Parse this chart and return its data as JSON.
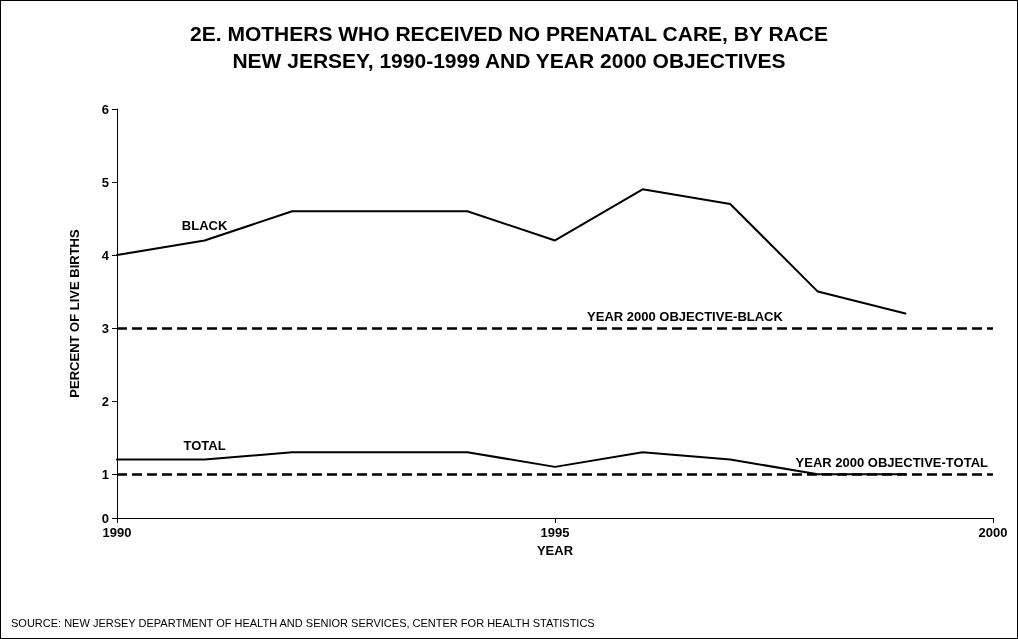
{
  "chart_data": {
    "type": "line",
    "title": "2E. MOTHERS WHO RECEIVED NO PRENATAL CARE, BY RACE\nNEW JERSEY, 1990-1999 AND YEAR 2000 OBJECTIVES",
    "xlabel": "YEAR",
    "ylabel": "PERCENT OF LIVE BIRTHS",
    "annotations": [
      "SOURCE: NEW JERSEY DEPARTMENT OF HEALTH AND SENIOR SERVICES, CENTER FOR HEALTH STATISTICS"
    ],
    "x": [
      1990,
      1991,
      1992,
      1993,
      1994,
      1995,
      1996,
      1997,
      1998,
      1999
    ],
    "series": [
      {
        "name": "BLACK",
        "color": "#000000",
        "values": [
          4.0,
          4.2,
          4.6,
          4.6,
          4.6,
          4.2,
          4.9,
          4.7,
          3.5,
          3.2
        ]
      },
      {
        "name": "TOTAL",
        "color": "#000000",
        "values": [
          1.2,
          1.2,
          1.3,
          1.3,
          1.3,
          1.1,
          1.3,
          1.2,
          1.0,
          1.0
        ]
      }
    ],
    "xlim": [
      1990,
      2000
    ],
    "xticks": [
      1990,
      1995,
      2000
    ],
    "ylim": [
      0.4,
      6
    ],
    "yticks": [
      {
        "value": 0.4,
        "label": "0"
      },
      1,
      2,
      3,
      4,
      5,
      6
    ],
    "ref_lines": [
      {
        "axis": "y",
        "value": 3,
        "label": "YEAR 2000 OBJECTIVE-BLACK",
        "color": "#000000",
        "line_style": "dashed"
      },
      {
        "axis": "y",
        "value": 1,
        "label": "YEAR 2000 OBJECTIVE-TOTAL",
        "color": "#000000",
        "line_style": "dashed"
      }
    ],
    "grid": false,
    "legend": false,
    "marker": "none",
    "line_style": "solid"
  }
}
